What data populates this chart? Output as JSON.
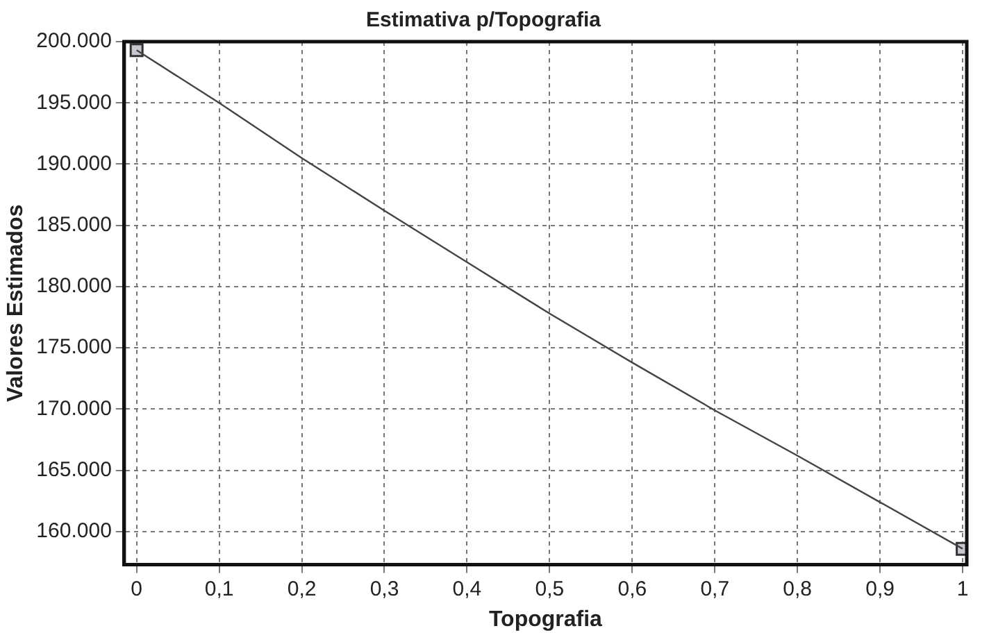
{
  "chart_data": {
    "type": "line",
    "title": "Estimativa p/Topografia",
    "xlabel": "Topografia",
    "ylabel": "Valores Estimados",
    "x": [
      0,
      0.1,
      0.2,
      0.3,
      0.4,
      0.5,
      0.6,
      0.7,
      0.8,
      0.9,
      1
    ],
    "series": [
      {
        "type": "line",
        "color": "#444444",
        "marker": "none",
        "values": [
          199300,
          195000,
          190500,
          186200,
          182000,
          177800,
          173800,
          169900,
          166200,
          162400,
          158600
        ]
      },
      {
        "type": "scatter",
        "color": "#c8c8d0",
        "marker": "square",
        "x": [
          0,
          1
        ],
        "values": [
          199300,
          158600
        ]
      }
    ],
    "xlim": [
      -0.015,
      1.005
    ],
    "ylim": [
      157300,
      200000
    ],
    "xticks": [
      0,
      {
        "value": 0.1,
        "label": "0,1"
      },
      {
        "value": 0.2,
        "label": "0,2"
      },
      {
        "value": 0.3,
        "label": "0,3"
      },
      {
        "value": 0.4,
        "label": "0,4"
      },
      {
        "value": 0.5,
        "label": "0,5"
      },
      {
        "value": 0.6,
        "label": "0,6"
      },
      {
        "value": 0.7,
        "label": "0,7"
      },
      {
        "value": 0.8,
        "label": "0,8"
      },
      {
        "value": 0.9,
        "label": "0,9"
      },
      1
    ],
    "yticks": [
      {
        "value": 160000,
        "label": "160.000"
      },
      {
        "value": 165000,
        "label": "165.000"
      },
      {
        "value": 170000,
        "label": "170.000"
      },
      {
        "value": 175000,
        "label": "175.000"
      },
      {
        "value": 180000,
        "label": "180.000"
      },
      {
        "value": 185000,
        "label": "185.000"
      },
      {
        "value": 190000,
        "label": "190.000"
      },
      {
        "value": 195000,
        "label": "195.000"
      },
      {
        "value": 200000,
        "label": "200.000"
      }
    ],
    "grid": true,
    "legend": false,
    "line_style": "solid"
  }
}
